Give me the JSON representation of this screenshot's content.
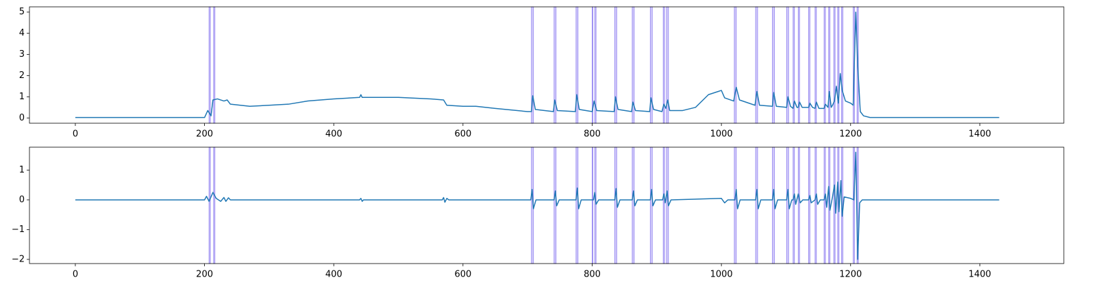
{
  "chart_data": [
    {
      "type": "line",
      "x": [
        0,
        200,
        205,
        210,
        213,
        220,
        230,
        235,
        240,
        270,
        300,
        330,
        360,
        400,
        440,
        442,
        444,
        500,
        550,
        570,
        575,
        600,
        620,
        650,
        700,
        706,
        708,
        712,
        740,
        742,
        746,
        774,
        776,
        780,
        800,
        803,
        807,
        834,
        836,
        840,
        861,
        863,
        867,
        889,
        891,
        895,
        908,
        911,
        914,
        917,
        920,
        940,
        960,
        980,
        995,
        1000,
        1005,
        1019,
        1023,
        1028,
        1052,
        1055,
        1059,
        1079,
        1081,
        1085,
        1101,
        1103,
        1107,
        1111,
        1113,
        1117,
        1119,
        1121,
        1125,
        1135,
        1137,
        1141,
        1145,
        1147,
        1151,
        1159,
        1161,
        1165,
        1167,
        1170,
        1172,
        1175,
        1178,
        1181,
        1184,
        1187,
        1192,
        1200,
        1204,
        1208,
        1211,
        1215,
        1220,
        1230,
        1430
      ],
      "series": [
        {
          "color": "#1f77b4",
          "values": [
            0.02,
            0.02,
            0.35,
            0.1,
            0.85,
            0.9,
            0.8,
            0.85,
            0.65,
            0.55,
            0.6,
            0.65,
            0.8,
            0.9,
            0.97,
            1.1,
            0.97,
            0.97,
            0.9,
            0.85,
            0.6,
            0.55,
            0.55,
            0.45,
            0.3,
            0.3,
            1.05,
            0.4,
            0.3,
            0.85,
            0.35,
            0.3,
            1.1,
            0.4,
            0.3,
            0.8,
            0.35,
            0.3,
            1.0,
            0.4,
            0.3,
            0.75,
            0.35,
            0.3,
            0.95,
            0.4,
            0.3,
            0.65,
            0.45,
            0.85,
            0.35,
            0.35,
            0.5,
            1.1,
            1.25,
            1.3,
            0.95,
            0.8,
            1.45,
            0.85,
            0.6,
            1.25,
            0.6,
            0.55,
            1.2,
            0.55,
            0.5,
            1.0,
            0.55,
            0.45,
            0.8,
            0.5,
            0.5,
            0.75,
            0.5,
            0.5,
            0.7,
            0.5,
            0.45,
            0.75,
            0.45,
            0.45,
            0.65,
            0.5,
            1.25,
            0.5,
            0.6,
            0.8,
            1.5,
            0.7,
            2.1,
            1.3,
            0.8,
            0.7,
            0.6,
            5.0,
            2.5,
            0.3,
            0.1,
            0.02,
            0.02
          ]
        }
      ],
      "xlim": [
        -71,
        1530
      ],
      "xticks": [
        0,
        200,
        400,
        600,
        800,
        1000,
        1200,
        1400
      ],
      "ylim": [
        -0.25,
        5.25
      ],
      "yticks": [
        0,
        1,
        2,
        3,
        4,
        5
      ],
      "span_color": "#7b68ee",
      "spans": [
        [
          207,
          209
        ],
        [
          214,
          216
        ],
        [
          706,
          709
        ],
        [
          741,
          744
        ],
        [
          775,
          778
        ],
        [
          800,
          801
        ],
        [
          804,
          806
        ],
        [
          835,
          838
        ],
        [
          862,
          865
        ],
        [
          890,
          893
        ],
        [
          910,
          912
        ],
        [
          915,
          918
        ],
        [
          1020,
          1023
        ],
        [
          1053,
          1056
        ],
        [
          1079,
          1082
        ],
        [
          1101,
          1104
        ],
        [
          1111,
          1113
        ],
        [
          1119,
          1121
        ],
        [
          1135,
          1137
        ],
        [
          1145,
          1147
        ],
        [
          1159,
          1161
        ],
        [
          1166,
          1168
        ],
        [
          1174,
          1176
        ],
        [
          1180,
          1182
        ],
        [
          1186,
          1188
        ],
        [
          1204,
          1206
        ],
        [
          1210,
          1212
        ]
      ]
    },
    {
      "type": "line",
      "x": [
        0,
        200,
        203,
        207,
        213,
        218,
        225,
        230,
        233,
        237,
        240,
        440,
        442,
        444,
        446,
        568,
        570,
        572,
        575,
        578,
        705,
        707,
        709,
        713,
        741,
        743,
        745,
        749,
        775,
        777,
        779,
        783,
        802,
        804,
        806,
        810,
        835,
        837,
        839,
        843,
        862,
        864,
        866,
        870,
        890,
        892,
        894,
        898,
        909,
        911,
        913,
        916,
        918,
        922,
        1000,
        1005,
        1010,
        1021,
        1023,
        1025,
        1029,
        1053,
        1055,
        1057,
        1061,
        1079,
        1081,
        1083,
        1087,
        1101,
        1103,
        1105,
        1109,
        1111,
        1113,
        1115,
        1119,
        1122,
        1126,
        1135,
        1137,
        1139,
        1145,
        1147,
        1149,
        1153,
        1159,
        1161,
        1163,
        1166,
        1168,
        1172,
        1175,
        1177,
        1180,
        1182,
        1185,
        1187,
        1190,
        1200,
        1205,
        1208,
        1211,
        1214,
        1218,
        1430
      ],
      "series": [
        {
          "color": "#1f77b4",
          "values": [
            0,
            0,
            0.12,
            -0.05,
            0.25,
            0.05,
            -0.05,
            0.08,
            -0.05,
            0.07,
            0,
            0,
            0.05,
            -0.05,
            0,
            0,
            0.08,
            -0.08,
            0.05,
            0,
            0,
            0.35,
            -0.3,
            0,
            0,
            0.3,
            -0.2,
            0,
            0,
            0.4,
            -0.3,
            0,
            0,
            0.25,
            -0.15,
            0,
            0,
            0.38,
            -0.25,
            0,
            0,
            0.3,
            -0.2,
            0,
            0,
            0.35,
            -0.2,
            0,
            0,
            0.2,
            -0.1,
            0.3,
            -0.2,
            0,
            0.05,
            -0.1,
            0,
            0,
            0.35,
            -0.3,
            0,
            0,
            0.35,
            -0.3,
            0,
            0,
            0.35,
            -0.3,
            0,
            0,
            0.35,
            -0.3,
            0,
            0,
            0.2,
            -0.15,
            0.2,
            -0.1,
            0,
            0,
            0.15,
            -0.1,
            0,
            0.2,
            -0.15,
            0,
            0,
            0.2,
            -0.25,
            0.45,
            -0.35,
            0.1,
            0.5,
            -0.45,
            0.6,
            -0.4,
            0.65,
            -0.55,
            0.1,
            0.05,
            0,
            1.6,
            -2.0,
            -0.1,
            0,
            0
          ]
        }
      ],
      "xlim": [
        -71,
        1530
      ],
      "xticks": [
        0,
        200,
        400,
        600,
        800,
        1000,
        1200,
        1400
      ],
      "ylim": [
        -2.14,
        1.77
      ],
      "yticks": [
        {
          "value": -2,
          "label": "−2"
        },
        {
          "value": -1,
          "label": "−1"
        },
        0,
        1
      ],
      "span_color": "#7b68ee",
      "spans": [
        [
          207,
          209
        ],
        [
          214,
          216
        ],
        [
          706,
          709
        ],
        [
          741,
          744
        ],
        [
          775,
          778
        ],
        [
          800,
          801
        ],
        [
          804,
          806
        ],
        [
          835,
          838
        ],
        [
          862,
          865
        ],
        [
          890,
          893
        ],
        [
          910,
          912
        ],
        [
          915,
          918
        ],
        [
          1020,
          1023
        ],
        [
          1053,
          1056
        ],
        [
          1079,
          1082
        ],
        [
          1101,
          1104
        ],
        [
          1111,
          1113
        ],
        [
          1119,
          1121
        ],
        [
          1135,
          1137
        ],
        [
          1145,
          1147
        ],
        [
          1159,
          1161
        ],
        [
          1166,
          1168
        ],
        [
          1174,
          1176
        ],
        [
          1180,
          1182
        ],
        [
          1186,
          1188
        ],
        [
          1204,
          1206
        ],
        [
          1210,
          1212
        ]
      ]
    }
  ]
}
